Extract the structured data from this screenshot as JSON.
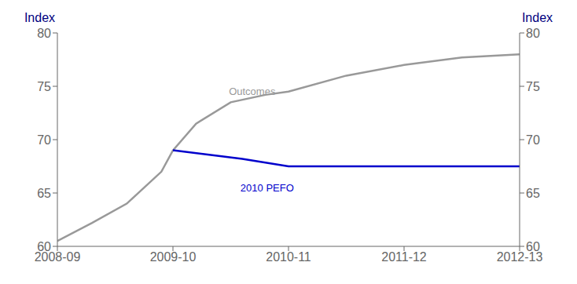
{
  "chart_data": {
    "type": "line",
    "ylabel": "Index",
    "y2label": "Index",
    "xlim": [
      0,
      4
    ],
    "xticks": [
      {
        "value": 0,
        "label": "2008-09"
      },
      {
        "value": 1,
        "label": "2009-10"
      },
      {
        "value": 2,
        "label": "2010-11"
      },
      {
        "value": 3,
        "label": "2011-12"
      },
      {
        "value": 4,
        "label": "2012-13"
      }
    ],
    "ylim": [
      60,
      80
    ],
    "yticks": [
      60,
      65,
      70,
      75,
      80
    ],
    "y2lim": [
      60,
      80
    ],
    "y2ticks": [
      60,
      65,
      70,
      75,
      80
    ],
    "grid": false,
    "series": [
      {
        "color": "#999999",
        "x": [
          0,
          0.3,
          0.6,
          0.9,
          1.0,
          1.2,
          1.5,
          1.8,
          2.0,
          2.5,
          3.0,
          3.5,
          4.0
        ],
        "values": [
          60.5,
          62.2,
          64.0,
          67.0,
          69.0,
          71.5,
          73.5,
          74.2,
          74.5,
          76.0,
          77.0,
          77.7,
          78.0
        ]
      },
      {
        "color": "#0000cc",
        "x": [
          1.0,
          1.3,
          1.6,
          2.0,
          2.5,
          3.0,
          3.5,
          4.0
        ],
        "values": [
          69.0,
          68.6,
          68.2,
          67.5,
          67.5,
          67.5,
          67.5,
          67.5
        ]
      }
    ],
    "annotations": [
      {
        "text": "Outcomes",
        "x": 1.45,
        "y": 74.5,
        "color": "#999999"
      },
      {
        "text": "2010 PEFO",
        "x": 1.55,
        "y": 65.5,
        "color": "#0000cc"
      }
    ]
  }
}
